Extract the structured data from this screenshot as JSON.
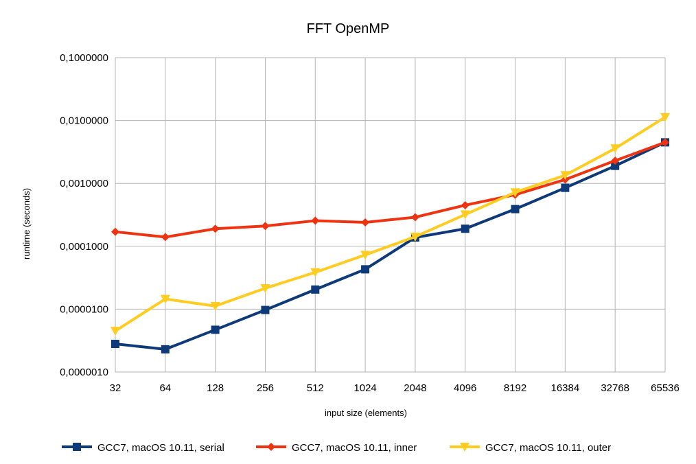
{
  "chart_data": {
    "type": "line",
    "title": "FFT OpenMP",
    "xlabel": "input size (elements)",
    "ylabel": "runtime (seconds)",
    "y_scale": "log",
    "ylim": [
      1e-06,
      0.1
    ],
    "y_ticks": [
      1e-06,
      1e-05,
      0.0001,
      0.001,
      0.01,
      0.1
    ],
    "y_tick_labels": [
      "0,0000010",
      "0,0000100",
      "0,0001000",
      "0,0010000",
      "0,0100000",
      "0,1000000"
    ],
    "categories": [
      "32",
      "64",
      "128",
      "256",
      "512",
      "1024",
      "2048",
      "4096",
      "8192",
      "16384",
      "32768",
      "65536"
    ],
    "grid": true,
    "legend_position": "bottom",
    "series": [
      {
        "name": "GCC7, macOS 10.11, serial",
        "color": "#0f3a7a",
        "marker": "square",
        "values": [
          2.8e-06,
          2.3e-06,
          4.7e-06,
          9.7e-06,
          2.05e-05,
          4.3e-05,
          0.000138,
          0.00019,
          0.00039,
          0.00085,
          0.0019,
          0.0045
        ]
      },
      {
        "name": "GCC7, macOS 10.11, inner",
        "color": "#ee3311",
        "marker": "diamond",
        "values": [
          0.00017,
          0.00014,
          0.00019,
          0.00021,
          0.000255,
          0.00024,
          0.00029,
          0.00045,
          0.00066,
          0.00115,
          0.0023,
          0.0045
        ]
      },
      {
        "name": "GCC7, macOS 10.11, outer",
        "color": "#ffcc22",
        "marker": "triangle-down",
        "values": [
          4.5e-06,
          1.45e-05,
          1.12e-05,
          2.15e-05,
          3.85e-05,
          7.3e-05,
          0.000142,
          0.00032,
          0.00072,
          0.00135,
          0.0036,
          0.0113
        ]
      }
    ]
  }
}
